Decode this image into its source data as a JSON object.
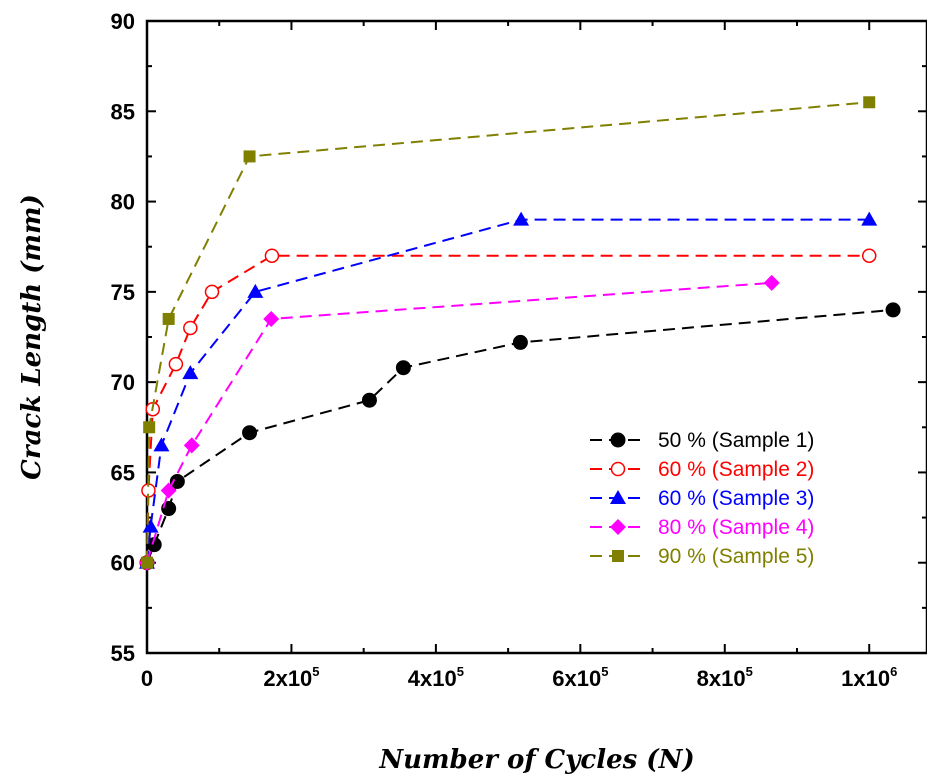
{
  "chart_data": {
    "type": "line",
    "xlabel": "Number of Cycles (N)",
    "ylabel": "Crack Length (mm)",
    "xlim": [
      0,
      1080000
    ],
    "ylim": [
      55,
      90
    ],
    "x_ticks": [
      {
        "value": 0,
        "mantissa": "0",
        "exponent": ""
      },
      {
        "value": 200000,
        "mantissa": "2x10",
        "exponent": "5"
      },
      {
        "value": 400000,
        "mantissa": "4x10",
        "exponent": "5"
      },
      {
        "value": 600000,
        "mantissa": "6x10",
        "exponent": "5"
      },
      {
        "value": 800000,
        "mantissa": "8x10",
        "exponent": "5"
      },
      {
        "value": 1000000,
        "mantissa": "1x10",
        "exponent": "6"
      }
    ],
    "y_ticks": [
      55,
      60,
      65,
      70,
      75,
      80,
      85,
      90
    ],
    "grid": false,
    "legend_position": "bottom-right",
    "series": [
      {
        "name": "50 % (Sample 1)",
        "color": "#000000",
        "marker": "circle-filled",
        "x": [
          0,
          10000,
          30000,
          42000,
          142000,
          308000,
          355000,
          517000,
          1033000
        ],
        "y": [
          60,
          61,
          63,
          64.5,
          67.2,
          69,
          70.8,
          72.2,
          74
        ]
      },
      {
        "name": "60 % (Sample 2)",
        "color": "#ff0000",
        "marker": "circle-open",
        "x": [
          0,
          2000,
          8000,
          40000,
          60000,
          90000,
          173000,
          1000000
        ],
        "y": [
          60,
          64,
          68.5,
          71,
          73,
          75,
          77,
          77
        ]
      },
      {
        "name": "60 % (Sample 3)",
        "color": "#0000ff",
        "marker": "triangle-filled",
        "x": [
          0,
          5000,
          20000,
          60000,
          150000,
          518000,
          1000000
        ],
        "y": [
          60,
          62,
          66.5,
          70.5,
          75,
          79,
          79
        ]
      },
      {
        "name": "80 % (Sample 4)",
        "color": "#ff00ff",
        "marker": "diamond-filled",
        "x": [
          0,
          30000,
          62000,
          172000,
          865000
        ],
        "y": [
          60,
          64,
          66.5,
          73.5,
          75.5
        ]
      },
      {
        "name": "90 % (Sample 5)",
        "color": "#808000",
        "marker": "square-filled",
        "x": [
          0,
          3000,
          30000,
          142000,
          1000000
        ],
        "y": [
          60,
          67.5,
          73.5,
          82.5,
          85.5
        ]
      }
    ]
  }
}
